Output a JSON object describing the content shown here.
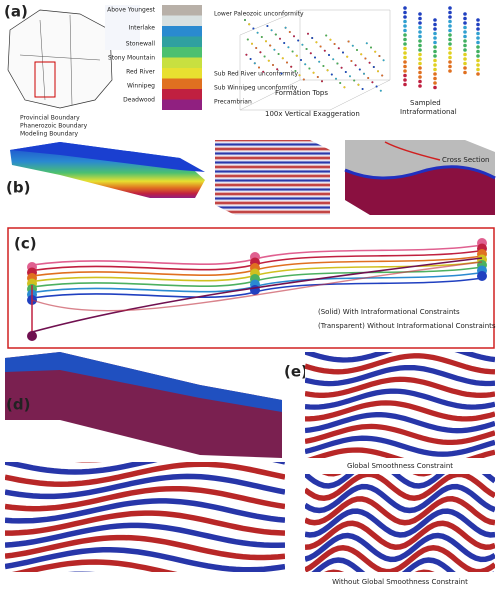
{
  "panel_a": {
    "label": "(a)",
    "map_legend": [
      "Provincial Boundary",
      "Phanerozoic Boundary",
      "Modeling Boundary"
    ],
    "column_left": [
      "Above Youngest",
      "Interlake",
      "Stonewall",
      "Stony Mountain",
      "Red River",
      "Winnipeg",
      "Deadwood"
    ],
    "column_right": [
      "Lower Paleozoic unconformity",
      "Sub Red River unconformity",
      "Sub Winnipeg unconformity",
      "Precambrian"
    ],
    "formation_tops": "Formation Tops",
    "exaggeration": "100x Vertical Exaggeration",
    "sampled": [
      "Sampled",
      "Intraformational"
    ]
  },
  "panel_b": {
    "label": "(b)",
    "cross_section": "Cross Section"
  },
  "panel_c": {
    "label": "(c)",
    "solid": "(Solid) With Intraformational Constraints",
    "transparent": "(Transparent) Without Intraformational Constraints"
  },
  "panel_d": {
    "label": "(d)"
  },
  "panel_e": {
    "label": "(e)",
    "top_caption": "Global Smoothness Constraint",
    "bottom_caption": "Without Global Smoothness Constraint"
  }
}
